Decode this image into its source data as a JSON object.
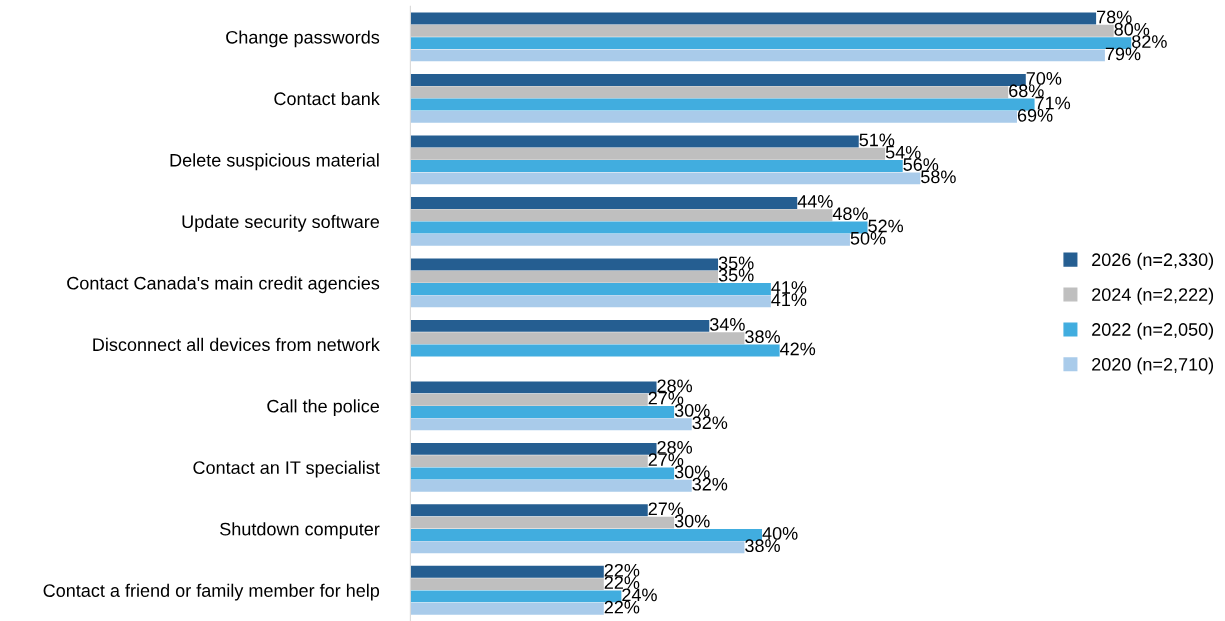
{
  "chart_data": {
    "type": "bar",
    "orientation": "horizontal",
    "data_labels": true,
    "legend": "right",
    "grid": false,
    "categories": [
      "Change passwords",
      "Contact bank",
      "Delete suspicious material",
      "Update security software",
      "Contact Canada's main credit agencies",
      "Disconnect all devices from network",
      "Call the police",
      "Contact an IT specialist",
      "Shutdown computer",
      "Contact a friend or family member for help"
    ],
    "series": [
      {
        "name": "2026 (n=2,330)",
        "color": "#255e91",
        "values": [
          78,
          70,
          51,
          44,
          35,
          34,
          28,
          28,
          27,
          22
        ],
        "value_labels": [
          "78%",
          "70%",
          "51%",
          "44%",
          "35%",
          "34%",
          "28%",
          "28%",
          "27%",
          "22%"
        ]
      },
      {
        "name": "2024 (n=2,222)",
        "color": "#bfbfbf",
        "values": [
          80,
          68,
          54,
          48,
          35,
          38,
          27,
          27,
          30,
          22
        ],
        "value_labels": [
          "80%",
          "68%",
          "54%",
          "48%",
          "35%",
          "38%",
          "27%",
          "27%",
          "30%",
          "22%"
        ]
      },
      {
        "name": "2022 (n=2,050)",
        "color": "#41addf",
        "values": [
          82,
          71,
          56,
          52,
          41,
          42,
          30,
          30,
          40,
          24
        ],
        "value_labels": [
          "82%",
          "71%",
          "56%",
          "52%",
          "41%",
          "42%",
          "30%",
          "30%",
          "40%",
          "24%"
        ]
      },
      {
        "name": "2020 (n=2,710)",
        "color": "#a9cbea",
        "values": [
          79,
          69,
          58,
          50,
          41,
          null,
          32,
          32,
          38,
          22
        ],
        "value_labels": [
          "79%",
          "69%",
          "58%",
          "50%",
          "41%",
          null,
          "32%",
          "32%",
          "38%",
          "22%"
        ]
      }
    ]
  }
}
